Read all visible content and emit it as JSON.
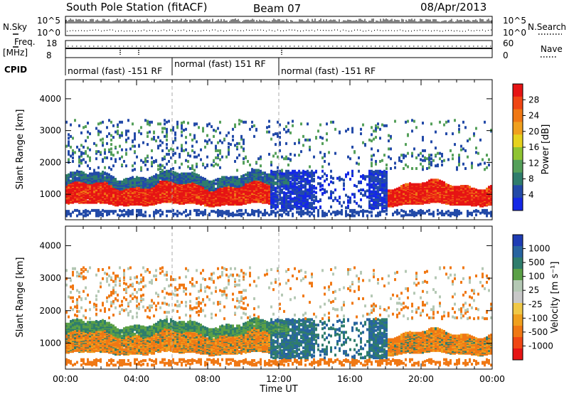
{
  "header": {
    "station": "South Pole Station (fitACF)",
    "beam": "Beam 07",
    "date": "08/Apr/2013"
  },
  "left_labels": {
    "nsky": "N.Sky",
    "freq_line1": "Freq.",
    "freq_line2": "[MHz]",
    "cpid": "CPID"
  },
  "right_labels": {
    "nsearch": "N.Search",
    "nave": "Nave"
  },
  "noise_panel": {
    "ytick_top": "10^5",
    "ytick_bottom": "10^0"
  },
  "freq_panel": {
    "left_ticks": [
      "18",
      "8"
    ],
    "right_ticks": [
      "60",
      "0"
    ]
  },
  "cpid_segments": [
    {
      "label": "normal (fast) -151 RF",
      "start": 0.0,
      "end": 6.0
    },
    {
      "label": "normal (fast) 151 RF",
      "start": 6.0,
      "end": 12.0
    },
    {
      "label": "normal (fast) -151 RF",
      "start": 12.0,
      "end": 24.0
    }
  ],
  "xaxis": {
    "ticklabels": [
      "00:00",
      "04:00",
      "08:00",
      "12:00",
      "16:00",
      "20:00",
      "00:00"
    ],
    "label": "Time UT"
  },
  "power_colorbar": {
    "label": "Power [dB]",
    "ticks": [
      "4",
      "8",
      "12",
      "16",
      "20",
      "24",
      "28"
    ],
    "colors": [
      "#1428e6",
      "#234aa8",
      "#2f7d6c",
      "#55a05a",
      "#8fc432",
      "#e6d21e",
      "#f0a01e",
      "#f07814",
      "#f04614",
      "#e61414"
    ]
  },
  "velocity_colorbar": {
    "label": "Velocity [m s⁻¹]",
    "ticks": [
      "1000",
      "500",
      "100",
      "25",
      "-25",
      "-100",
      "-500",
      "-1000"
    ],
    "colors": [
      "#1e3cb4",
      "#2864a0",
      "#2f7d6c",
      "#5aa046",
      "#b4c8b4",
      "#c8c8c8",
      "#f0c846",
      "#f0a01e",
      "#f07814",
      "#f04614",
      "#e61414"
    ]
  },
  "chart_data": [
    {
      "type": "heatmap",
      "title": "",
      "quantity": "Power",
      "ylabel": "Slant Range [km]",
      "yticks": [
        1000,
        2000,
        3000,
        4000
      ],
      "ylim": [
        200,
        4600
      ],
      "xlim": [
        0,
        24
      ],
      "xlabel": "Time UT",
      "colorbar_label": "Power [dB]",
      "colorbar_ticks": [
        4,
        8,
        12,
        16,
        20,
        24,
        28
      ],
      "dominant_band": {
        "range_km": [
          600,
          1300
        ],
        "hours": [
          0,
          11.5
        ],
        "power_db": 28
      },
      "secondary_band": {
        "range_km": [
          1300,
          1600
        ],
        "hours": [
          0,
          12
        ],
        "power_db": 12
      },
      "late_band": {
        "range_km": [
          600,
          1300
        ],
        "hours": [
          18,
          24
        ],
        "power_db": 24
      }
    },
    {
      "type": "heatmap",
      "title": "",
      "quantity": "Velocity",
      "ylabel": "Slant Range [km]",
      "yticks": [
        1000,
        2000,
        3000,
        4000
      ],
      "ylim": [
        200,
        4600
      ],
      "xlim": [
        0,
        24
      ],
      "xlabel": "Time UT",
      "colorbar_label": "Velocity [m s⁻¹]",
      "colorbar_ticks": [
        1000,
        500,
        100,
        25,
        -25,
        -100,
        -500,
        -1000
      ],
      "dominant_band": {
        "range_km": [
          600,
          1400
        ],
        "hours": [
          0,
          11.5
        ],
        "velocity_ms": -100
      },
      "late_band": {
        "range_km": [
          800,
          1400
        ],
        "hours": [
          18,
          24
        ],
        "velocity_ms": -100
      }
    }
  ]
}
